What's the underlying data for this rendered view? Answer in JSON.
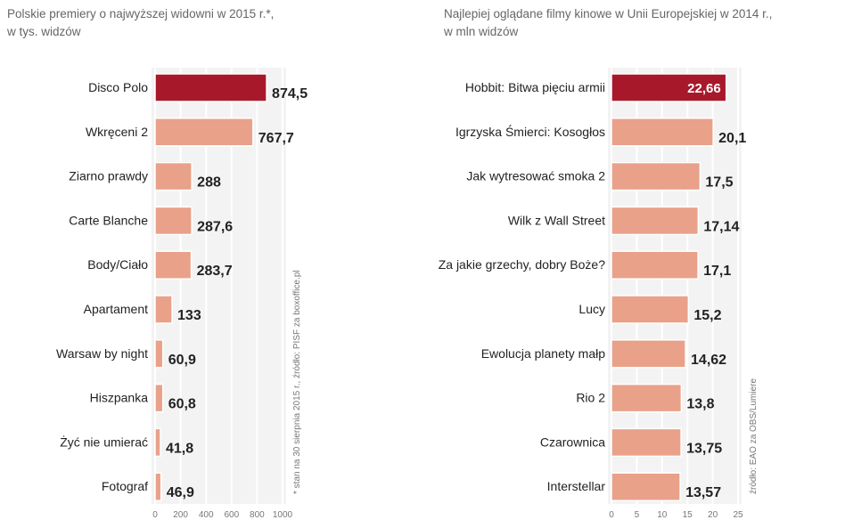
{
  "colors": {
    "highlight": "#a8182b",
    "bar": "#e9a189",
    "plot_bg": "#f3f3f3"
  },
  "chart_data": [
    {
      "type": "bar",
      "orientation": "horizontal",
      "title": "Polskie premiery o najwyższej widowni w 2015 r.*,",
      "subtitle": "w tys. widzów",
      "categories": [
        "Disco Polo",
        "Wkręceni 2",
        "Ziarno prawdy",
        "Carte Blanche",
        "Body/Ciało",
        "Apartament",
        "Warsaw by night",
        "Hiszpanka",
        "Żyć nie umierać",
        "Fotograf"
      ],
      "values": [
        874.5,
        767.7,
        288,
        287.6,
        283.7,
        133,
        60.9,
        60.8,
        41.8,
        46.9
      ],
      "value_labels": [
        "874,5",
        "767,7",
        "288",
        "287,6",
        "283,7",
        "133",
        "60,9",
        "60,8",
        "41,8",
        "46,9"
      ],
      "highlight_index": 0,
      "xlim": [
        0,
        1000
      ],
      "ticks": [
        "0",
        "200",
        "400",
        "600",
        "800",
        "1000"
      ],
      "tick_values": [
        0,
        200,
        400,
        600,
        800,
        1000
      ],
      "note": "* stan na 30 sierpnia 2015 r., źródło: PISF za boxoffice.pl",
      "grid": true
    },
    {
      "type": "bar",
      "orientation": "horizontal",
      "title": "Najlepiej oglądane filmy kinowe w Unii Europejskiej w 2014 r.,",
      "subtitle": "w mln widzów",
      "categories": [
        "Hobbit: Bitwa pięciu armii",
        "Igrzyska Śmierci: Kosogłos",
        "Jak wytresować  smoka 2",
        "Wilk z Wall Street",
        "Za jakie grzechy,  dobry Boże?",
        "Lucy",
        "Ewolucja planety małp",
        "Rio 2",
        "Czarownica",
        "Interstellar"
      ],
      "values": [
        22.66,
        20.1,
        17.5,
        17.14,
        17.1,
        15.2,
        14.62,
        13.8,
        13.75,
        13.57
      ],
      "value_labels": [
        "22,66",
        "20,1",
        "17,5",
        "17,14",
        "17,1",
        "15,2",
        "14,62",
        "13,8",
        "13,75",
        "13,57"
      ],
      "highlight_index": 0,
      "xlim": [
        0,
        25
      ],
      "ticks": [
        "0",
        "5",
        "10",
        "15",
        "20",
        "25"
      ],
      "tick_values": [
        0,
        5,
        10,
        15,
        20,
        25
      ],
      "note": "źródło: EAO za OBS/Lumiere",
      "grid": true
    }
  ]
}
